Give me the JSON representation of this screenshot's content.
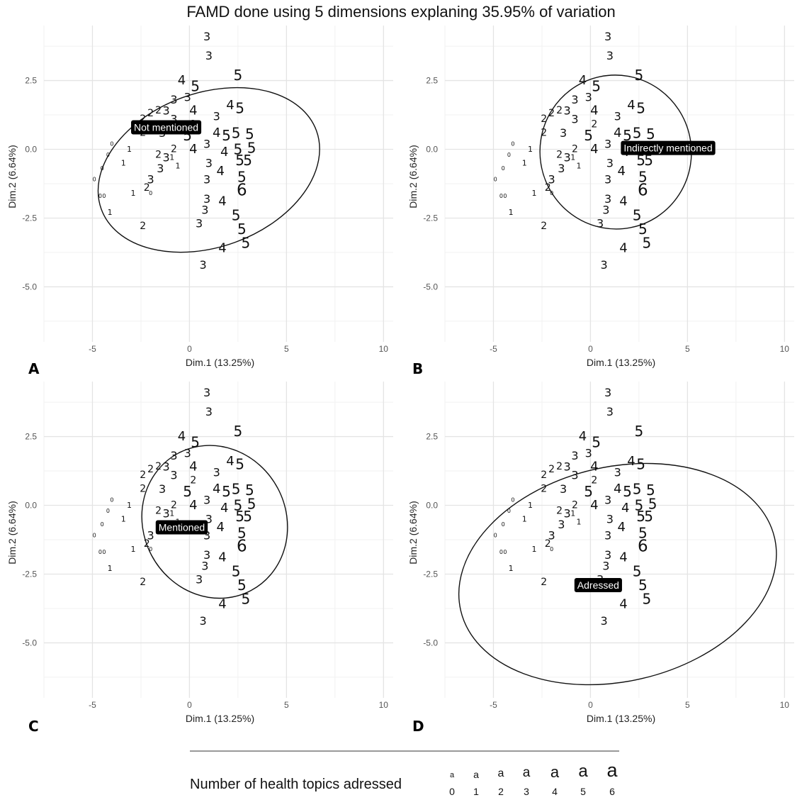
{
  "title": "FAMD done using 5 dimensions explaning 35.95% of variation",
  "chart_data": {
    "type": "scatter",
    "x_label": "Dim.1 (13.25%)",
    "y_label": "Dim.2 (6.64%)",
    "x_ticks": [
      -5,
      0,
      5,
      10
    ],
    "x_tick_labels": [
      "-5",
      "0",
      "5",
      "10"
    ],
    "y_ticks": [
      2.5,
      0,
      -2.5,
      -5
    ],
    "y_tick_labels": [
      "2.5",
      "0.0",
      "-2.5",
      "-5.0"
    ],
    "xlim": [
      -7.5,
      10.5
    ],
    "ylim": [
      -7,
      4.5
    ],
    "grid": true,
    "points": [
      {
        "x": 0.9,
        "y": 4.1,
        "n": 3
      },
      {
        "x": 1.0,
        "y": 3.4,
        "n": 3
      },
      {
        "x": 2.5,
        "y": 2.7,
        "n": 5
      },
      {
        "x": -0.4,
        "y": 2.5,
        "n": 4
      },
      {
        "x": 0.3,
        "y": 2.3,
        "n": 5
      },
      {
        "x": -0.1,
        "y": 1.9,
        "n": 3
      },
      {
        "x": -0.8,
        "y": 1.8,
        "n": 3
      },
      {
        "x": 2.1,
        "y": 1.6,
        "n": 4
      },
      {
        "x": 2.6,
        "y": 1.5,
        "n": 5
      },
      {
        "x": -1.2,
        "y": 1.4,
        "n": 3
      },
      {
        "x": -1.6,
        "y": 1.4,
        "n": 2
      },
      {
        "x": 0.2,
        "y": 1.4,
        "n": 4
      },
      {
        "x": -2.0,
        "y": 1.3,
        "n": 2
      },
      {
        "x": -2.4,
        "y": 1.1,
        "n": 2
      },
      {
        "x": -0.8,
        "y": 1.1,
        "n": 3
      },
      {
        "x": 1.4,
        "y": 1.2,
        "n": 3
      },
      {
        "x": 0.2,
        "y": 0.9,
        "n": 2
      },
      {
        "x": -2.4,
        "y": 0.6,
        "n": 2
      },
      {
        "x": -1.4,
        "y": 0.6,
        "n": 3
      },
      {
        "x": -0.1,
        "y": 0.5,
        "n": 5
      },
      {
        "x": 1.4,
        "y": 0.6,
        "n": 4
      },
      {
        "x": 1.9,
        "y": 0.5,
        "n": 5
      },
      {
        "x": 2.4,
        "y": 0.6,
        "n": 5
      },
      {
        "x": 3.1,
        "y": 0.55,
        "n": 5
      },
      {
        "x": 0.9,
        "y": 0.2,
        "n": 3
      },
      {
        "x": 2.5,
        "y": 0.0,
        "n": 5
      },
      {
        "x": 3.2,
        "y": 0.05,
        "n": 5
      },
      {
        "x": 0.2,
        "y": 0.0,
        "n": 4
      },
      {
        "x": 1.8,
        "y": -0.1,
        "n": 4
      },
      {
        "x": -0.8,
        "y": 0.0,
        "n": 2
      },
      {
        "x": -1.6,
        "y": -0.2,
        "n": 2
      },
      {
        "x": -1.2,
        "y": -0.3,
        "n": 3
      },
      {
        "x": -0.9,
        "y": -0.3,
        "n": 1
      },
      {
        "x": 2.6,
        "y": -0.4,
        "n": 5
      },
      {
        "x": 3.0,
        "y": -0.4,
        "n": 5
      },
      {
        "x": 1.0,
        "y": -0.5,
        "n": 3
      },
      {
        "x": -0.6,
        "y": -0.6,
        "n": 1
      },
      {
        "x": -1.5,
        "y": -0.7,
        "n": 3
      },
      {
        "x": 1.6,
        "y": -0.8,
        "n": 4
      },
      {
        "x": 2.7,
        "y": -1.0,
        "n": 5
      },
      {
        "x": -2.0,
        "y": -1.1,
        "n": 3
      },
      {
        "x": 0.9,
        "y": -1.1,
        "n": 3
      },
      {
        "x": 2.7,
        "y": -1.5,
        "n": 6
      },
      {
        "x": -2.2,
        "y": -1.4,
        "n": 2
      },
      {
        "x": -2.0,
        "y": -1.6,
        "n": 0
      },
      {
        "x": -2.9,
        "y": -1.6,
        "n": 1
      },
      {
        "x": 0.9,
        "y": -1.8,
        "n": 3
      },
      {
        "x": 1.7,
        "y": -1.9,
        "n": 4
      },
      {
        "x": 0.8,
        "y": -2.2,
        "n": 3
      },
      {
        "x": 2.4,
        "y": -2.4,
        "n": 5
      },
      {
        "x": 0.5,
        "y": -2.7,
        "n": 3
      },
      {
        "x": 2.7,
        "y": -2.9,
        "n": 5
      },
      {
        "x": -2.4,
        "y": -2.8,
        "n": 2
      },
      {
        "x": 2.9,
        "y": -3.4,
        "n": 5
      },
      {
        "x": 1.7,
        "y": -3.6,
        "n": 4
      },
      {
        "x": 0.7,
        "y": -4.2,
        "n": 3
      },
      {
        "x": -4.0,
        "y": 0.2,
        "n": 0
      },
      {
        "x": -4.2,
        "y": -0.2,
        "n": 0
      },
      {
        "x": -4.5,
        "y": -0.7,
        "n": 0
      },
      {
        "x": -4.9,
        "y": -1.1,
        "n": 0
      },
      {
        "x": -4.6,
        "y": -1.7,
        "n": 0
      },
      {
        "x": -4.4,
        "y": -1.7,
        "n": 0
      },
      {
        "x": -3.1,
        "y": 0.0,
        "n": 1
      },
      {
        "x": -3.4,
        "y": -0.5,
        "n": 1
      },
      {
        "x": -4.1,
        "y": -2.3,
        "n": 1
      }
    ],
    "panels": [
      {
        "letter": "A",
        "group": "Not mentioned",
        "label_pos": [
          -1.2,
          0.8
        ],
        "ellipse": {
          "cx": 1.0,
          "cy": -0.75,
          "rx": 5.9,
          "ry": 2.8,
          "angle": 20
        }
      },
      {
        "letter": "B",
        "group": "Indirectly mentioned",
        "label_pos": [
          4.0,
          0.05
        ],
        "ellipse": {
          "cx": 1.3,
          "cy": -0.1,
          "rx": 3.9,
          "ry": 2.8,
          "angle": 12
        }
      },
      {
        "letter": "C",
        "group": "Mentioned",
        "label_pos": [
          -0.4,
          -0.8
        ],
        "ellipse": {
          "cx": 1.3,
          "cy": -0.6,
          "rx": 4.0,
          "ry": 2.6,
          "angle": -62
        }
      },
      {
        "letter": "D",
        "group": "Adressed",
        "label_pos": [
          0.4,
          -2.9
        ],
        "ellipse": {
          "cx": 1.4,
          "cy": -2.5,
          "rx": 8.3,
          "ry": 3.9,
          "angle": 13
        }
      }
    ]
  },
  "legend": {
    "title": "Number of health topics adressed",
    "key_glyph": "a",
    "levels": [
      "0",
      "1",
      "2",
      "3",
      "4",
      "5",
      "6"
    ]
  }
}
